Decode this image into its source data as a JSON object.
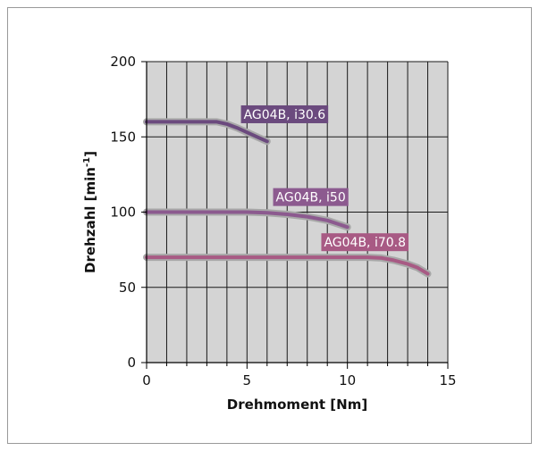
{
  "chart_data": {
    "type": "line",
    "xlabel": "Drehmoment [Nm]",
    "ylabel": "Drehzahl [min-1]",
    "ylabel_main": "Drehzahl [min",
    "ylabel_sup": "-1",
    "ylabel_close": "]",
    "xlim": [
      0,
      15
    ],
    "ylim": [
      0,
      200
    ],
    "xticks": [
      0,
      5,
      10,
      15
    ],
    "yticks": [
      0,
      50,
      100,
      150,
      200
    ],
    "grid": true,
    "background": "#d4d4d4",
    "series": [
      {
        "name": "AG04B, i30.6",
        "color": "#6b4a7e",
        "label_at": [
          4.7,
          165
        ],
        "points": [
          [
            0,
            160
          ],
          [
            3.5,
            160
          ],
          [
            4,
            158.5
          ],
          [
            4.5,
            156
          ],
          [
            5,
            153
          ],
          [
            5.5,
            150
          ],
          [
            6,
            147
          ]
        ]
      },
      {
        "name": "AG04B, i50",
        "color": "#8c5a8f",
        "label_at": [
          6.3,
          110
        ],
        "points": [
          [
            0,
            100
          ],
          [
            5,
            100
          ],
          [
            6,
            99.5
          ],
          [
            7,
            98.5
          ],
          [
            8,
            97
          ],
          [
            9,
            94.5
          ],
          [
            10,
            90
          ]
        ]
      },
      {
        "name": "AG04B, i70.8",
        "color": "#a85a84",
        "label_at": [
          8.7,
          80
        ],
        "points": [
          [
            0,
            70
          ],
          [
            11,
            70
          ],
          [
            11.7,
            69.5
          ],
          [
            12.3,
            68
          ],
          [
            13,
            65.5
          ],
          [
            13.5,
            63
          ],
          [
            14,
            59
          ]
        ]
      }
    ]
  }
}
